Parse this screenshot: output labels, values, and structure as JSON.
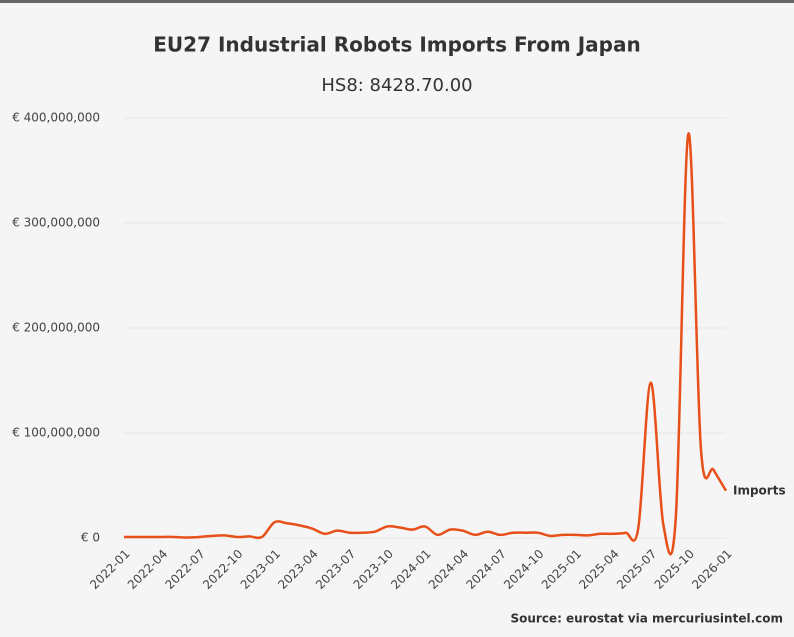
{
  "chart_data": {
    "type": "line",
    "title": "EU27 Industrial Robots Imports From Japan",
    "subtitle": "HS8: 8428.70.00",
    "source": "Source: eurostat via mercuriusintel.com",
    "categories": [
      "2022-01",
      null,
      null,
      "2022-04",
      null,
      null,
      "2022-07",
      null,
      null,
      "2022-10",
      null,
      null,
      "2023-01",
      null,
      null,
      "2023-04",
      null,
      null,
      "2023-07",
      null,
      null,
      "2023-10",
      null,
      null,
      "2024-01",
      null,
      null,
      "2024-04",
      null,
      null,
      "2024-07",
      null,
      null,
      "2024-10",
      null,
      null,
      "2025-01",
      null,
      null,
      "2025-04",
      null,
      null,
      "2025-07",
      null,
      null,
      "2025-10",
      null,
      null,
      "2026-01"
    ],
    "series": [
      {
        "name": "Imports",
        "color": "#e8501a",
        "values": [
          1000000,
          1000000,
          1000000,
          1000000,
          1000000,
          500000,
          1000000,
          2000000,
          2500000,
          1000000,
          1500000,
          1000000,
          15000000,
          14000000,
          12000000,
          9000000,
          4000000,
          7000000,
          5000000,
          5000000,
          6000000,
          11000000,
          10000000,
          8000000,
          11000000,
          3000000,
          8000000,
          7000000,
          3000000,
          6000000,
          3000000,
          5000000,
          5000000,
          5000000,
          2000000,
          3000000,
          3000000,
          2500000,
          4000000,
          4000000,
          5000000,
          9000000,
          148000000,
          13000000,
          20000000,
          385000000,
          85000000,
          65000000,
          45000000
        ]
      }
    ],
    "ylim": [
      0,
      400000000
    ],
    "yticks": [
      {
        "value": 0,
        "label": "€ 0"
      },
      {
        "value": 100000000,
        "label": "€ 100,000,000"
      },
      {
        "value": 200000000,
        "label": "€ 200,000,000"
      },
      {
        "value": 300000000,
        "label": "€ 300,000,000"
      },
      {
        "value": 400000000,
        "label": "€ 400,000,000"
      }
    ],
    "grid": true
  }
}
